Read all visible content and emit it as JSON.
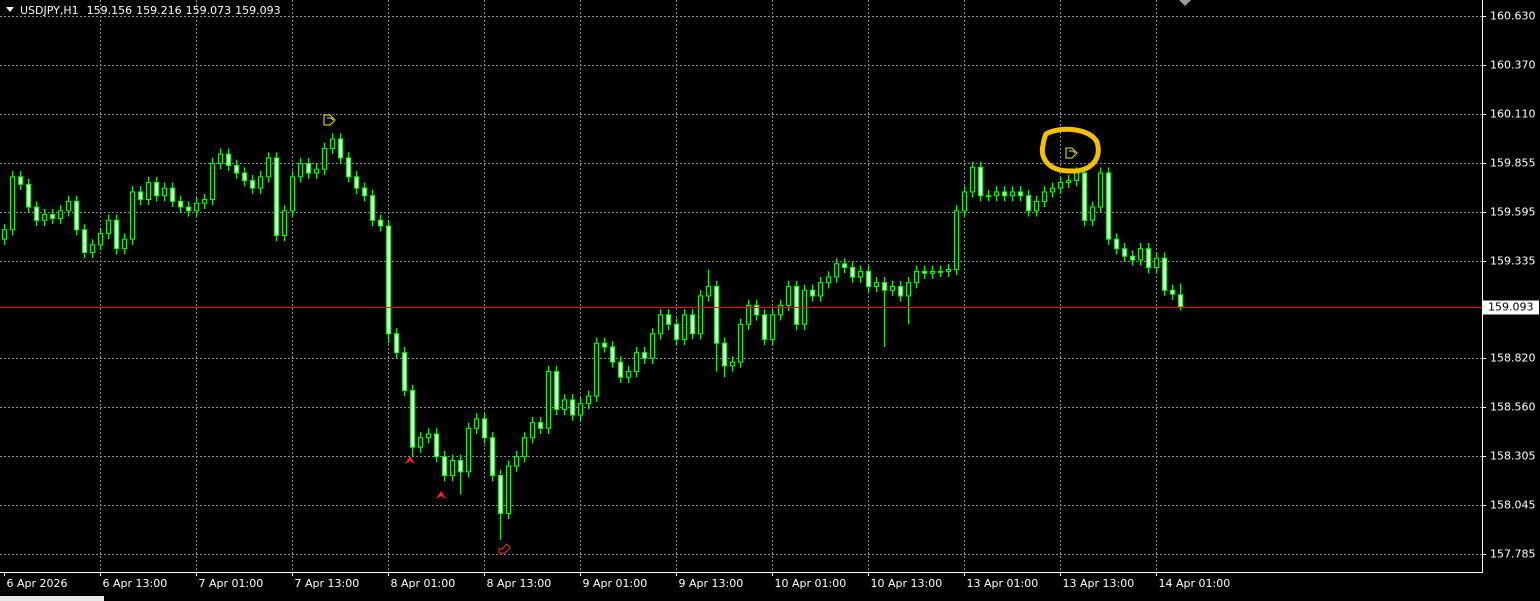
{
  "chart_data": {
    "type": "candlestick",
    "symbol": "USDJPY,H1",
    "categories": [
      "6 Apr 2026",
      null,
      null,
      null,
      null,
      null,
      null,
      null,
      null,
      null,
      null,
      null,
      "6 Apr 13:00",
      null,
      null,
      null,
      null,
      null,
      null,
      null,
      null,
      null,
      null,
      null,
      "7 Apr 01:00",
      null,
      null,
      null,
      null,
      null,
      null,
      null,
      null,
      null,
      null,
      null,
      "7 Apr 13:00",
      null,
      null,
      null,
      null,
      null,
      null,
      null,
      null,
      null,
      null,
      null,
      "8 Apr 01:00",
      null,
      null,
      null,
      null,
      null,
      null,
      null,
      null,
      null,
      null,
      null,
      "8 Apr 13:00",
      null,
      null,
      null,
      null,
      null,
      null,
      null,
      null,
      null,
      null,
      null,
      "9 Apr 01:00",
      null,
      null,
      null,
      null,
      null,
      null,
      null,
      null,
      null,
      null,
      null,
      "9 Apr 13:00",
      null,
      null,
      null,
      null,
      null,
      null,
      null,
      null,
      null,
      null,
      null,
      "10 Apr 01:00",
      null,
      null,
      null,
      null,
      null,
      null,
      null,
      null,
      null,
      null,
      null,
      "10 Apr 13:00",
      null,
      null,
      null,
      null,
      null,
      null,
      null,
      null,
      null,
      null,
      null,
      "13 Apr 01:00",
      null,
      null,
      null,
      null,
      null,
      null,
      null,
      null,
      null,
      null,
      null,
      "13 Apr 13:00",
      null,
      null,
      null,
      null,
      null,
      null,
      null,
      null,
      null,
      null,
      null,
      "14 Apr 01:00",
      null,
      null,
      null
    ],
    "open": [
      159.45,
      159.5,
      159.78,
      159.74,
      159.62,
      159.55,
      159.58,
      159.56,
      159.6,
      159.65,
      159.5,
      159.38,
      159.42,
      159.48,
      159.55,
      159.4,
      159.45,
      159.7,
      159.66,
      159.75,
      159.68,
      159.72,
      159.65,
      159.62,
      159.6,
      159.64,
      159.66,
      159.85,
      159.9,
      159.84,
      159.8,
      159.76,
      159.72,
      159.78,
      159.88,
      159.47,
      159.6,
      159.78,
      159.85,
      159.8,
      159.82,
      159.93,
      159.98,
      159.88,
      159.78,
      159.72,
      159.68,
      159.55,
      159.52,
      158.95,
      158.85,
      158.65,
      158.35,
      158.4,
      158.42,
      158.3,
      158.2,
      158.28,
      158.22,
      158.45,
      158.5,
      158.4,
      158.2,
      158.0,
      158.25,
      158.3,
      158.4,
      158.48,
      158.45,
      158.75,
      158.55,
      158.6,
      158.52,
      158.58,
      158.62,
      158.9,
      158.88,
      158.8,
      158.72,
      158.75,
      158.85,
      158.82,
      158.95,
      159.05,
      159.0,
      158.92,
      159.05,
      158.95,
      159.15,
      159.2,
      158.9,
      158.78,
      158.8,
      159.0,
      159.1,
      159.05,
      158.92,
      159.05,
      159.1,
      159.2,
      159.0,
      159.18,
      159.15,
      159.22,
      159.25,
      159.32,
      159.3,
      159.25,
      159.28,
      159.2,
      159.22,
      159.18,
      159.2,
      159.15,
      159.22,
      159.28,
      159.27,
      159.28,
      159.28,
      159.29,
      159.6,
      159.7,
      159.83,
      159.68,
      159.68,
      159.7,
      159.68,
      159.7,
      159.68,
      159.6,
      159.65,
      159.7,
      159.72,
      159.75,
      159.76,
      159.8,
      159.55,
      159.62,
      159.8,
      159.45,
      159.4,
      159.36,
      159.34,
      159.4,
      159.3,
      159.35,
      159.18,
      159.156
    ],
    "high": [
      159.53,
      159.81,
      159.81,
      159.77,
      159.65,
      159.61,
      159.61,
      159.63,
      159.68,
      159.68,
      159.53,
      159.45,
      159.51,
      159.58,
      159.58,
      159.48,
      159.73,
      159.73,
      159.78,
      159.78,
      159.75,
      159.75,
      159.68,
      159.65,
      159.67,
      159.69,
      159.88,
      159.93,
      159.93,
      159.87,
      159.83,
      159.79,
      159.81,
      159.91,
      159.91,
      159.63,
      159.81,
      159.88,
      159.88,
      159.85,
      159.96,
      160.01,
      160.01,
      159.91,
      159.81,
      159.75,
      159.71,
      159.58,
      159.55,
      158.98,
      158.88,
      158.68,
      158.43,
      158.45,
      158.45,
      158.33,
      158.31,
      158.31,
      158.48,
      158.53,
      158.53,
      158.43,
      158.23,
      158.28,
      158.33,
      158.43,
      158.51,
      158.51,
      158.78,
      158.78,
      158.63,
      158.63,
      158.61,
      158.65,
      158.93,
      158.93,
      158.91,
      158.83,
      158.78,
      158.88,
      158.88,
      158.98,
      159.08,
      159.08,
      159.03,
      159.08,
      159.08,
      159.18,
      159.29,
      159.23,
      158.93,
      158.83,
      159.03,
      159.13,
      159.13,
      159.08,
      159.08,
      159.13,
      159.23,
      159.23,
      159.21,
      159.21,
      159.25,
      159.28,
      159.35,
      159.35,
      159.33,
      159.31,
      159.31,
      159.25,
      159.25,
      159.23,
      159.23,
      159.25,
      159.31,
      159.31,
      159.31,
      159.31,
      159.32,
      159.63,
      159.73,
      159.86,
      159.86,
      159.71,
      159.73,
      159.73,
      159.73,
      159.73,
      159.71,
      159.68,
      159.73,
      159.75,
      159.78,
      159.79,
      159.83,
      159.83,
      159.65,
      159.83,
      159.83,
      159.48,
      159.43,
      159.39,
      159.43,
      159.43,
      159.38,
      159.38,
      159.21,
      159.216
    ],
    "low": [
      159.42,
      159.47,
      159.71,
      159.59,
      159.52,
      159.52,
      159.53,
      159.53,
      159.57,
      159.47,
      159.35,
      159.35,
      159.39,
      159.45,
      159.37,
      159.37,
      159.42,
      159.63,
      159.63,
      159.65,
      159.65,
      159.62,
      159.59,
      159.57,
      159.57,
      159.61,
      159.63,
      159.82,
      159.81,
      159.77,
      159.73,
      159.69,
      159.69,
      159.75,
      159.44,
      159.44,
      159.57,
      159.75,
      159.77,
      159.77,
      159.79,
      159.9,
      159.85,
      159.75,
      159.69,
      159.65,
      159.52,
      159.49,
      158.9,
      158.82,
      158.62,
      158.3,
      158.32,
      158.37,
      158.27,
      158.17,
      158.17,
      158.1,
      158.19,
      158.42,
      158.37,
      158.17,
      157.86,
      157.97,
      158.22,
      158.27,
      158.37,
      158.42,
      158.42,
      158.52,
      158.52,
      158.49,
      158.49,
      158.55,
      158.59,
      158.85,
      158.77,
      158.69,
      158.69,
      158.72,
      158.79,
      158.79,
      158.92,
      158.97,
      158.89,
      158.89,
      158.92,
      158.92,
      159.12,
      158.75,
      158.72,
      158.75,
      158.77,
      158.97,
      159.02,
      158.89,
      158.89,
      159.02,
      159.07,
      158.97,
      158.97,
      159.12,
      159.12,
      159.19,
      159.22,
      159.27,
      159.22,
      159.22,
      159.17,
      159.17,
      158.88,
      159.15,
      159.12,
      159.0,
      159.19,
      159.24,
      159.24,
      159.25,
      159.25,
      159.26,
      159.57,
      159.67,
      159.65,
      159.65,
      159.65,
      159.65,
      159.65,
      159.65,
      159.57,
      159.57,
      159.62,
      159.67,
      159.69,
      159.72,
      159.73,
      159.52,
      159.52,
      159.59,
      159.42,
      159.37,
      159.33,
      159.31,
      159.31,
      159.27,
      159.27,
      159.15,
      159.13,
      159.073
    ],
    "close": [
      159.5,
      159.78,
      159.74,
      159.62,
      159.55,
      159.58,
      159.56,
      159.6,
      159.65,
      159.5,
      159.38,
      159.42,
      159.48,
      159.55,
      159.4,
      159.45,
      159.7,
      159.66,
      159.75,
      159.68,
      159.72,
      159.65,
      159.62,
      159.6,
      159.64,
      159.66,
      159.85,
      159.9,
      159.84,
      159.8,
      159.76,
      159.72,
      159.78,
      159.88,
      159.47,
      159.6,
      159.78,
      159.85,
      159.8,
      159.82,
      159.93,
      159.98,
      159.88,
      159.78,
      159.72,
      159.68,
      159.55,
      159.52,
      158.95,
      158.85,
      158.65,
      158.35,
      158.4,
      158.42,
      158.3,
      158.2,
      158.28,
      158.22,
      158.45,
      158.5,
      158.4,
      158.2,
      158.0,
      158.25,
      158.3,
      158.4,
      158.48,
      158.45,
      158.75,
      158.55,
      158.6,
      158.52,
      158.58,
      158.62,
      158.9,
      158.88,
      158.8,
      158.72,
      158.75,
      158.85,
      158.82,
      158.95,
      159.05,
      159.0,
      158.92,
      159.05,
      158.95,
      159.15,
      159.2,
      158.9,
      158.78,
      158.8,
      159.0,
      159.1,
      159.05,
      158.92,
      159.05,
      159.1,
      159.2,
      159.0,
      159.18,
      159.15,
      159.22,
      159.25,
      159.32,
      159.3,
      159.25,
      159.28,
      159.2,
      159.22,
      159.18,
      159.2,
      159.15,
      159.22,
      159.28,
      159.27,
      159.28,
      159.28,
      159.29,
      159.6,
      159.7,
      159.83,
      159.68,
      159.68,
      159.7,
      159.68,
      159.7,
      159.68,
      159.6,
      159.65,
      159.7,
      159.72,
      159.75,
      159.76,
      159.8,
      159.55,
      159.62,
      159.8,
      159.45,
      159.4,
      159.36,
      159.34,
      159.4,
      159.3,
      159.35,
      159.18,
      159.16,
      159.093
    ],
    "ylim": [
      157.69,
      160.715
    ],
    "yticks": [
      {
        "value": 160.63,
        "label": "160.630"
      },
      {
        "value": 160.37,
        "label": "160.370"
      },
      {
        "value": 160.11,
        "label": "160.110"
      },
      {
        "value": 159.855,
        "label": "159.855"
      },
      {
        "value": 159.595,
        "label": "159.595"
      },
      {
        "value": 159.335,
        "label": "159.335"
      },
      {
        "value": 158.82,
        "label": "158.820"
      },
      {
        "value": 158.56,
        "label": "158.560"
      },
      {
        "value": 158.305,
        "label": "158.305"
      },
      {
        "value": 158.045,
        "label": "158.045"
      },
      {
        "value": 157.785,
        "label": "157.785"
      }
    ],
    "grid": true,
    "up_color": "#000000",
    "down_color": "#ffffff",
    "candle_color": "#00ff00",
    "bid_line_color": "#ff0000"
  }
}
